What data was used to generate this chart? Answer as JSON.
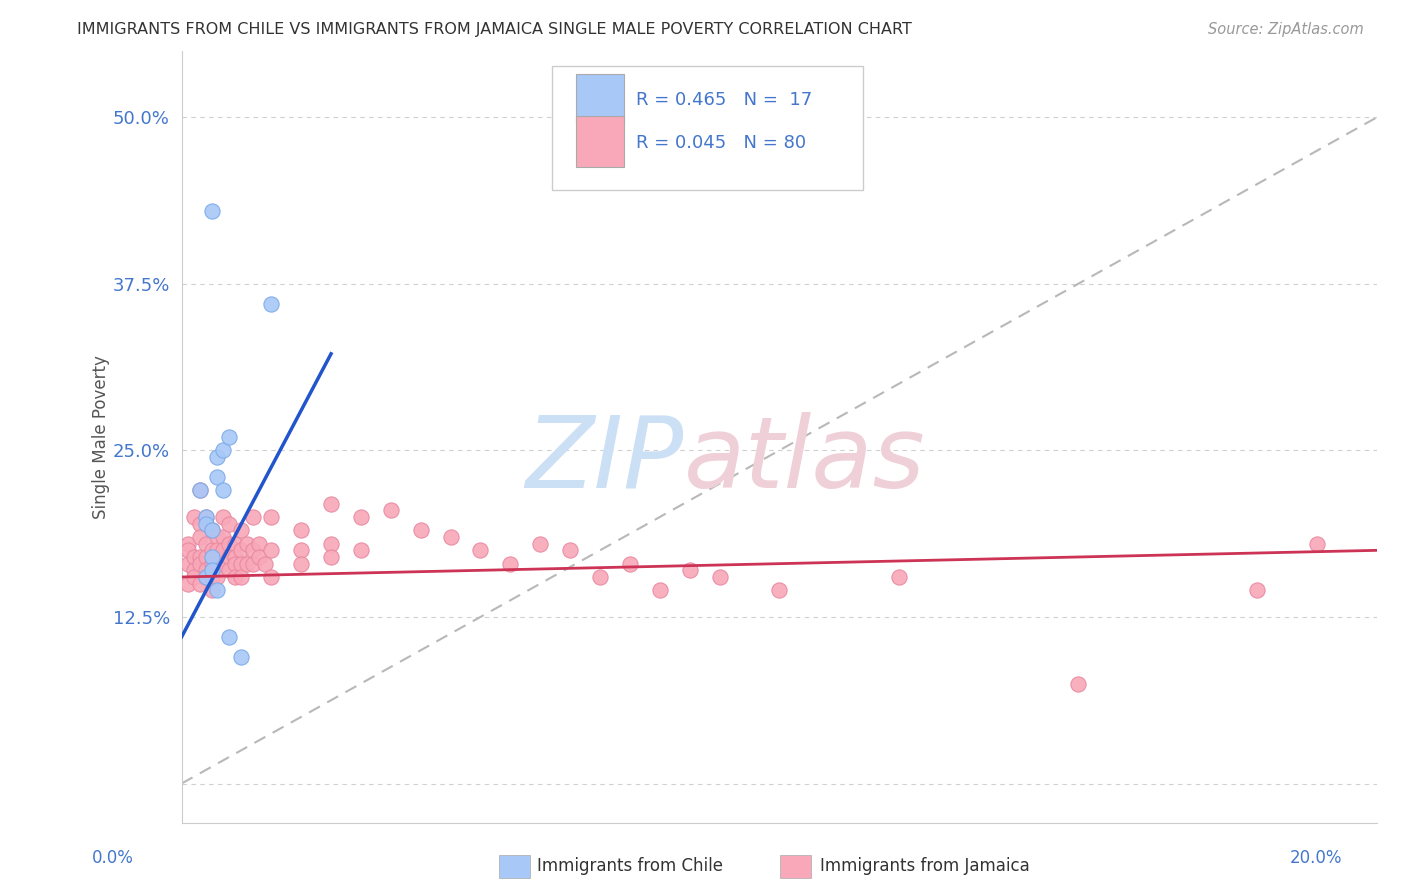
{
  "title": "IMMIGRANTS FROM CHILE VS IMMIGRANTS FROM JAMAICA SINGLE MALE POVERTY CORRELATION CHART",
  "source": "Source: ZipAtlas.com",
  "ylabel": "Single Male Poverty",
  "yticks": [
    0.0,
    12.5,
    25.0,
    37.5,
    50.0
  ],
  "ytick_labels": [
    "",
    "12.5%",
    "25.0%",
    "37.5%",
    "50.0%"
  ],
  "legend_r1": "R = 0.465",
  "legend_n1": "N =  17",
  "legend_r2": "R = 0.045",
  "legend_n2": "N = 80",
  "chile_color": "#a8c8f8",
  "chile_edge_color": "#7aaae8",
  "jamaica_color": "#f8a8b8",
  "jamaica_edge_color": "#e888a0",
  "chile_line_color": "#2255cc",
  "jamaica_line_color": "#cc3355",
  "diagonal_line_color": "#b8b8b8",
  "chile_scatter": [
    [
      0.5,
      43.0
    ],
    [
      1.5,
      36.0
    ],
    [
      0.3,
      22.0
    ],
    [
      0.4,
      20.0
    ],
    [
      0.4,
      19.5
    ],
    [
      0.5,
      19.0
    ],
    [
      0.6,
      24.5
    ],
    [
      0.7,
      25.0
    ],
    [
      0.8,
      26.0
    ],
    [
      0.6,
      23.0
    ],
    [
      0.7,
      22.0
    ],
    [
      0.5,
      17.0
    ],
    [
      0.4,
      15.5
    ],
    [
      0.5,
      16.0
    ],
    [
      0.6,
      14.5
    ],
    [
      0.8,
      11.0
    ],
    [
      1.0,
      9.5
    ]
  ],
  "jamaica_scatter": [
    [
      0.1,
      18.0
    ],
    [
      0.1,
      17.5
    ],
    [
      0.1,
      16.5
    ],
    [
      0.1,
      15.0
    ],
    [
      0.2,
      20.0
    ],
    [
      0.2,
      17.0
    ],
    [
      0.2,
      16.0
    ],
    [
      0.2,
      15.5
    ],
    [
      0.3,
      22.0
    ],
    [
      0.3,
      19.5
    ],
    [
      0.3,
      18.5
    ],
    [
      0.3,
      17.0
    ],
    [
      0.3,
      16.5
    ],
    [
      0.3,
      15.0
    ],
    [
      0.4,
      20.0
    ],
    [
      0.4,
      18.0
    ],
    [
      0.4,
      17.0
    ],
    [
      0.4,
      16.0
    ],
    [
      0.4,
      15.5
    ],
    [
      0.5,
      19.0
    ],
    [
      0.5,
      17.5
    ],
    [
      0.5,
      16.5
    ],
    [
      0.5,
      15.5
    ],
    [
      0.5,
      14.5
    ],
    [
      0.6,
      18.5
    ],
    [
      0.6,
      17.5
    ],
    [
      0.6,
      16.5
    ],
    [
      0.6,
      15.5
    ],
    [
      0.7,
      20.0
    ],
    [
      0.7,
      18.5
    ],
    [
      0.7,
      17.5
    ],
    [
      0.7,
      16.5
    ],
    [
      0.8,
      19.5
    ],
    [
      0.8,
      18.0
    ],
    [
      0.8,
      17.0
    ],
    [
      0.8,
      16.0
    ],
    [
      0.9,
      18.0
    ],
    [
      0.9,
      17.0
    ],
    [
      0.9,
      16.5
    ],
    [
      0.9,
      15.5
    ],
    [
      1.0,
      19.0
    ],
    [
      1.0,
      17.5
    ],
    [
      1.0,
      16.5
    ],
    [
      1.0,
      15.5
    ],
    [
      1.1,
      18.0
    ],
    [
      1.1,
      16.5
    ],
    [
      1.2,
      20.0
    ],
    [
      1.2,
      17.5
    ],
    [
      1.2,
      16.5
    ],
    [
      1.3,
      18.0
    ],
    [
      1.3,
      17.0
    ],
    [
      1.4,
      16.5
    ],
    [
      1.5,
      20.0
    ],
    [
      1.5,
      17.5
    ],
    [
      1.5,
      15.5
    ],
    [
      2.0,
      19.0
    ],
    [
      2.0,
      17.5
    ],
    [
      2.0,
      16.5
    ],
    [
      2.5,
      21.0
    ],
    [
      2.5,
      18.0
    ],
    [
      2.5,
      17.0
    ],
    [
      3.0,
      20.0
    ],
    [
      3.0,
      17.5
    ],
    [
      3.5,
      20.5
    ],
    [
      4.0,
      19.0
    ],
    [
      4.5,
      18.5
    ],
    [
      5.0,
      17.5
    ],
    [
      5.5,
      16.5
    ],
    [
      6.0,
      18.0
    ],
    [
      6.5,
      17.5
    ],
    [
      7.0,
      15.5
    ],
    [
      7.5,
      16.5
    ],
    [
      8.0,
      14.5
    ],
    [
      8.5,
      16.0
    ],
    [
      9.0,
      15.5
    ],
    [
      10.0,
      14.5
    ],
    [
      12.0,
      15.5
    ],
    [
      15.0,
      7.5
    ],
    [
      18.0,
      14.5
    ],
    [
      19.0,
      18.0
    ]
  ],
  "xlim": [
    0.0,
    20.0
  ],
  "ylim": [
    -3.0,
    55.0
  ],
  "background_color": "#ffffff",
  "grid_color": "#e0e0e0",
  "watermark_zip_color": "#cce0f5",
  "watermark_atlas_color": "#f0d0d8"
}
